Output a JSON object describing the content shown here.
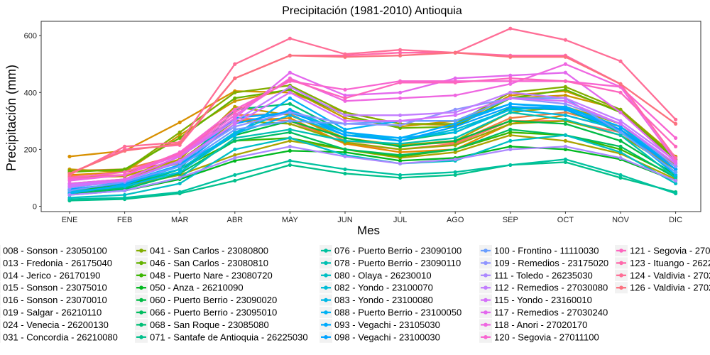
{
  "chart_data": {
    "type": "line",
    "title": "Precipitación (1981-2010)  Antioquia",
    "xlabel": "Mes",
    "ylabel": "Precipitación (mm)",
    "ylim": [
      0,
      640
    ],
    "yticks": [
      0,
      200,
      400,
      600
    ],
    "grid": false,
    "legend_position": "bottom",
    "categories": [
      "ENE",
      "FEB",
      "MAR",
      "ABR",
      "MAY",
      "JUN",
      "JUL",
      "AGO",
      "SEP",
      "OCT",
      "NOV",
      "DIC"
    ],
    "series": [
      {
        "name": "008 - Sonson - 23050100",
        "color": "#F8766D",
        "values": [
          105,
          110,
          150,
          310,
          300,
          220,
          200,
          220,
          300,
          300,
          260,
          130
        ]
      },
      {
        "name": "013 - Fredonia - 26175040",
        "color": "#EE8044",
        "values": [
          125,
          130,
          180,
          320,
          325,
          230,
          215,
          225,
          310,
          330,
          280,
          150
        ]
      },
      {
        "name": "014 - Jerico - 26170190",
        "color": "#E38900",
        "values": [
          110,
          120,
          160,
          300,
          310,
          220,
          190,
          200,
          290,
          320,
          270,
          140
        ]
      },
      {
        "name": "015 - Sonson - 23075010",
        "color": "#D89000",
        "values": [
          175,
          195,
          295,
          405,
          400,
          330,
          290,
          285,
          390,
          405,
          335,
          165
        ]
      },
      {
        "name": "016 - Sonson - 23070010",
        "color": "#CA9700",
        "values": [
          130,
          120,
          250,
          370,
          410,
          310,
          280,
          300,
          380,
          390,
          340,
          175
        ]
      },
      {
        "name": "019 - Salgar - 26210110",
        "color": "#BB9D00",
        "values": [
          100,
          105,
          165,
          350,
          320,
          240,
          215,
          230,
          330,
          350,
          290,
          145
        ]
      },
      {
        "name": "024 - Venecia - 26200130",
        "color": "#ABA300",
        "values": [
          60,
          70,
          110,
          180,
          230,
          200,
          170,
          190,
          250,
          230,
          185,
          95
        ]
      },
      {
        "name": "031 - Concordia - 26210080",
        "color": "#99A800",
        "values": [
          80,
          95,
          160,
          300,
          290,
          225,
          200,
          215,
          290,
          300,
          250,
          130
        ]
      },
      {
        "name": "041 - San Carlos - 23080800",
        "color": "#82AD00",
        "values": [
          125,
          125,
          260,
          400,
          425,
          330,
          290,
          290,
          400,
          420,
          340,
          170
        ]
      },
      {
        "name": "046 - San Carlos - 23080810",
        "color": "#64B200",
        "values": [
          120,
          130,
          240,
          380,
          410,
          320,
          275,
          280,
          380,
          410,
          330,
          165
        ]
      },
      {
        "name": "048 - Puerto Nare - 23080720",
        "color": "#39B600",
        "values": [
          55,
          75,
          130,
          230,
          240,
          200,
          175,
          200,
          260,
          250,
          200,
          105
        ]
      },
      {
        "name": "050 - Anza - 26210090",
        "color": "#00B81F",
        "values": [
          45,
          55,
          95,
          160,
          195,
          190,
          160,
          170,
          210,
          200,
          165,
          90
        ]
      },
      {
        "name": "060 - Puerto Berrio - 23090020",
        "color": "#00BB45",
        "values": [
          60,
          70,
          130,
          250,
          300,
          240,
          210,
          230,
          300,
          290,
          230,
          110
        ]
      },
      {
        "name": "066 - Puerto Berrio - 23095010",
        "color": "#00BD5F",
        "values": [
          50,
          60,
          115,
          230,
          260,
          200,
          180,
          200,
          270,
          250,
          210,
          100
        ]
      },
      {
        "name": "068 - San Roque - 23085080",
        "color": "#00BF76",
        "values": [
          55,
          65,
          130,
          340,
          360,
          260,
          230,
          260,
          345,
          340,
          260,
          120
        ]
      },
      {
        "name": "071 - Santafe de Antioquia - 26225030",
        "color": "#00C08B",
        "values": [
          20,
          25,
          45,
          90,
          145,
          115,
          100,
          110,
          145,
          155,
          100,
          50
        ]
      },
      {
        "name": "076 - Puerto Berrio - 23090100",
        "color": "#00C19F",
        "values": [
          25,
          30,
          50,
          110,
          160,
          130,
          110,
          120,
          145,
          165,
          110,
          45
        ]
      },
      {
        "name": "078 - Puerto Berrio - 23090110",
        "color": "#00C0B2",
        "values": [
          40,
          55,
          100,
          240,
          270,
          230,
          220,
          240,
          330,
          305,
          250,
          100
        ]
      },
      {
        "name": "080 - Olaya - 26230010",
        "color": "#00BFC4",
        "values": [
          30,
          40,
          80,
          200,
          240,
          180,
          150,
          160,
          230,
          250,
          190,
          80
        ]
      },
      {
        "name": "082 - Yondo - 23100070",
        "color": "#00BCD6",
        "values": [
          60,
          80,
          130,
          260,
          340,
          260,
          230,
          270,
          340,
          350,
          280,
          140
        ]
      },
      {
        "name": "083 - Yondo - 23100080",
        "color": "#00B8E5",
        "values": [
          50,
          70,
          120,
          255,
          320,
          250,
          240,
          260,
          340,
          320,
          270,
          110
        ]
      },
      {
        "name": "088 - Puerto Berrio - 23100050",
        "color": "#00B2F3",
        "values": [
          45,
          75,
          145,
          250,
          380,
          270,
          300,
          300,
          360,
          350,
          270,
          110
        ]
      },
      {
        "name": "093 - Vegachi - 23105030",
        "color": "#00ABFD",
        "values": [
          70,
          85,
          145,
          310,
          330,
          260,
          240,
          290,
          360,
          345,
          280,
          130
        ]
      },
      {
        "name": "098 - Vegachi - 23100030",
        "color": "#00A2FF",
        "values": [
          60,
          80,
          140,
          290,
          335,
          250,
          230,
          280,
          350,
          340,
          270,
          130
        ]
      },
      {
        "name": "100 - Frontino - 11110030",
        "color": "#6A9EFF",
        "values": [
          55,
          85,
          140,
          270,
          300,
          290,
          300,
          300,
          380,
          380,
          260,
          120
        ]
      },
      {
        "name": "109 - Remedios - 23175020",
        "color": "#8F94FF",
        "values": [
          65,
          90,
          155,
          280,
          330,
          290,
          285,
          340,
          380,
          360,
          290,
          140
        ]
      },
      {
        "name": "111 - Toledo - 26235030",
        "color": "#AC88FF",
        "values": [
          40,
          55,
          100,
          170,
          210,
          175,
          150,
          165,
          200,
          210,
          170,
          90
        ]
      },
      {
        "name": "112 - Remedios - 27030080",
        "color": "#C27DFF",
        "values": [
          75,
          95,
          175,
          300,
          420,
          320,
          320,
          330,
          400,
          380,
          300,
          160
        ]
      },
      {
        "name": "115 - Yondo - 23160010",
        "color": "#D570FA",
        "values": [
          70,
          90,
          160,
          290,
          400,
          300,
          300,
          320,
          380,
          370,
          290,
          150
        ]
      },
      {
        "name": "117 - Remedios - 27030240",
        "color": "#E368EE",
        "values": [
          80,
          95,
          175,
          310,
          470,
          390,
          400,
          450,
          460,
          470,
          330,
          155
        ]
      },
      {
        "name": "118 - Anori - 27020170",
        "color": "#EF67E1",
        "values": [
          90,
          110,
          180,
          320,
          450,
          370,
          380,
          390,
          430,
          500,
          420,
          160
        ]
      },
      {
        "name": "120 - Segovia - 27011100",
        "color": "#F865D1",
        "values": [
          95,
          110,
          190,
          340,
          440,
          410,
          440,
          440,
          440,
          440,
          420,
          240
        ]
      },
      {
        "name": "121 - Segovia - 27015050",
        "color": "#FD66BE",
        "values": [
          100,
          120,
          185,
          330,
          445,
          380,
          435,
          435,
          450,
          440,
          400,
          210
        ]
      },
      {
        "name": "123 - Ituango - 26225070",
        "color": "#FF69AB",
        "values": [
          115,
          200,
          215,
          450,
          530,
          530,
          540,
          540,
          530,
          530,
          430,
          170
        ]
      },
      {
        "name": "124 - Valdivia - 27020030",
        "color": "#FF6D96",
        "values": [
          110,
          210,
          225,
          500,
          590,
          535,
          550,
          540,
          625,
          585,
          510,
          305
        ]
      },
      {
        "name": "126 - Valdivia - 27020080",
        "color": "#FC717F",
        "values": [
          115,
          195,
          220,
          450,
          530,
          525,
          530,
          540,
          525,
          525,
          430,
          290
        ]
      }
    ]
  }
}
